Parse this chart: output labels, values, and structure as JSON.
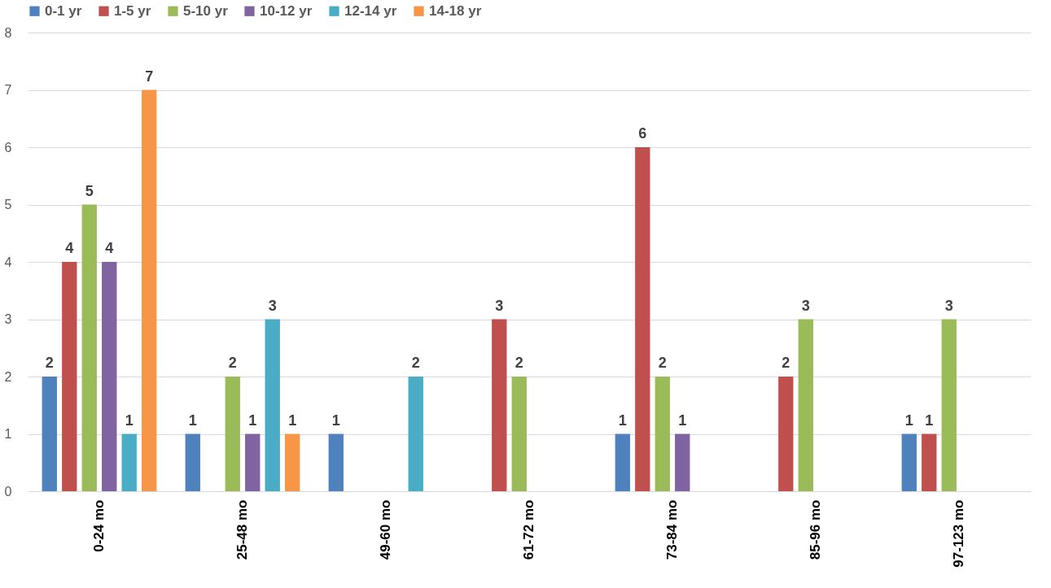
{
  "chart_data": {
    "type": "bar",
    "categories": [
      "0-24 mo",
      "25-48 mo",
      "49-60 mo",
      "61-72 mo",
      "73-84 mo",
      "85-96 mo",
      "97-123 mo"
    ],
    "series": [
      {
        "name": "0-1 yr",
        "color": "#4f81bd",
        "values": [
          2,
          1,
          1,
          null,
          1,
          null,
          1
        ]
      },
      {
        "name": "1-5 yr",
        "color": "#c0504d",
        "values": [
          4,
          null,
          null,
          3,
          6,
          2,
          1
        ]
      },
      {
        "name": "5-10 yr",
        "color": "#9bbb59",
        "values": [
          5,
          2,
          null,
          2,
          2,
          3,
          3
        ]
      },
      {
        "name": "10-12 yr",
        "color": "#8064a2",
        "values": [
          4,
          1,
          null,
          null,
          1,
          null,
          null
        ]
      },
      {
        "name": "12-14 yr",
        "color": "#4bacc6",
        "values": [
          1,
          3,
          2,
          null,
          null,
          null,
          null
        ]
      },
      {
        "name": "14-18 yr",
        "color": "#f79646",
        "values": [
          7,
          1,
          null,
          null,
          null,
          null,
          null
        ]
      }
    ],
    "ylim": [
      0,
      8
    ],
    "yticks": [
      0,
      1,
      2,
      3,
      4,
      5,
      6,
      7,
      8
    ],
    "grid": "y",
    "legend": "top",
    "data_labels": true
  }
}
